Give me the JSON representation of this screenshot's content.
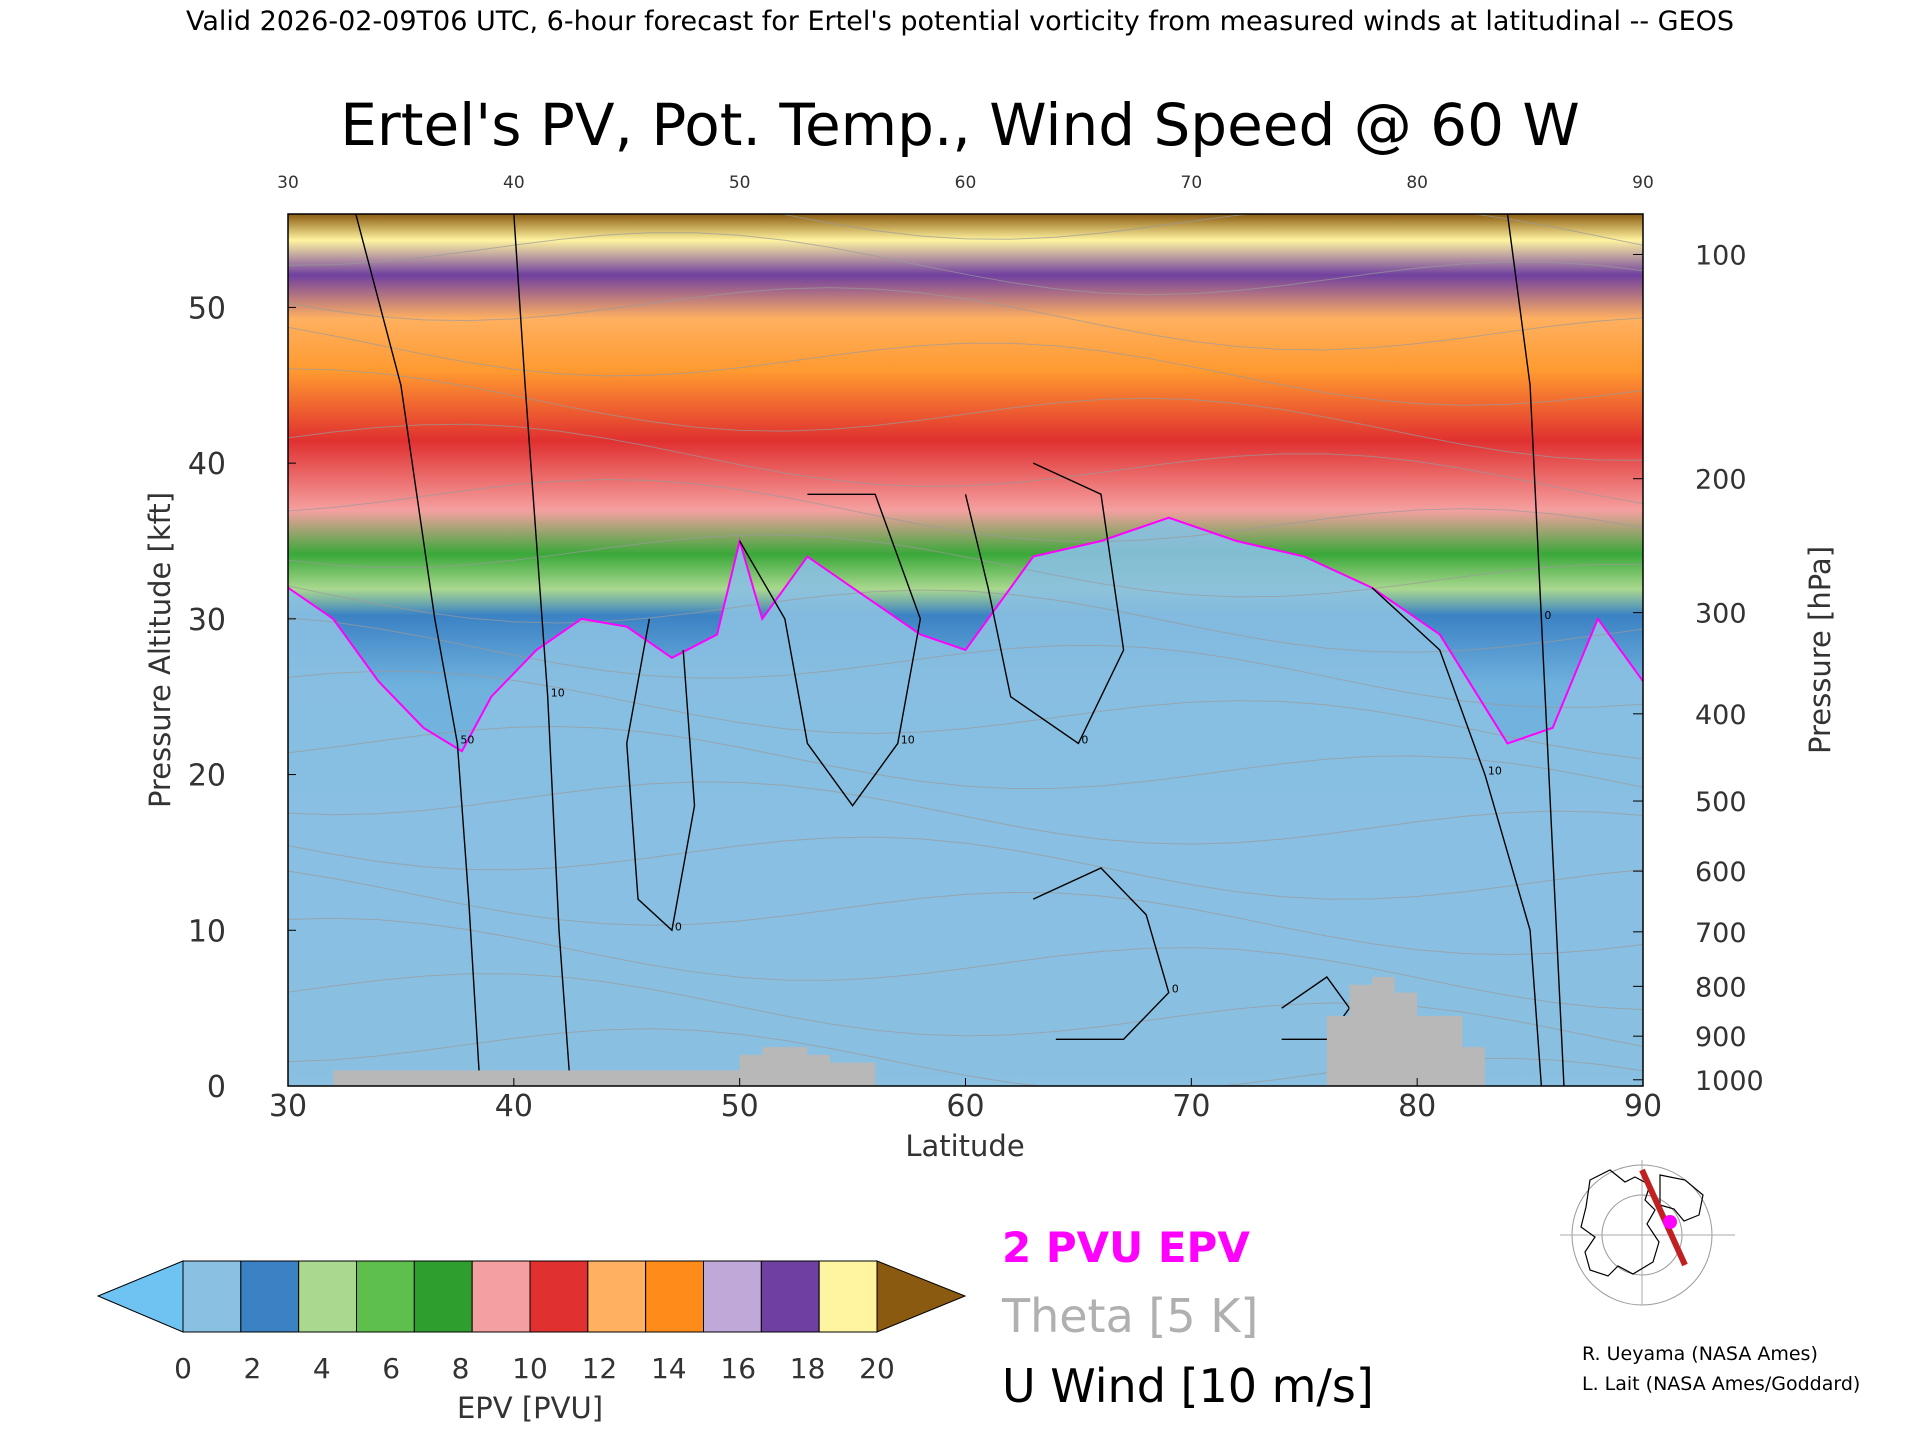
{
  "header": {
    "valid_line": "Valid 2026-02-09T06 UTC, 6-hour forecast for Ertel's potential vorticity from measured winds at latitudinal -- GEOS"
  },
  "chart_data": {
    "type": "heatmap",
    "title": "Ertel's PV, Pot. Temp., Wind Speed @ 60 W",
    "xlabel": "Latitude",
    "ylabel": "Pressure Altitude [kft]",
    "y2label": "Pressure [hPa]",
    "xlim": [
      30,
      90
    ],
    "ylim": [
      0,
      56
    ],
    "x_ticks": [
      30,
      40,
      50,
      60,
      70,
      80,
      90
    ],
    "y_ticks": [
      0,
      10,
      20,
      30,
      40,
      50
    ],
    "pressure_ticks": [
      {
        "value": 100,
        "kft": 53.4
      },
      {
        "value": 200,
        "kft": 39.0
      },
      {
        "value": 300,
        "kft": 30.4
      },
      {
        "value": 400,
        "kft": 23.9
      },
      {
        "value": 500,
        "kft": 18.3
      },
      {
        "value": 600,
        "kft": 13.8
      },
      {
        "value": 700,
        "kft": 9.9
      },
      {
        "value": 800,
        "kft": 6.4
      },
      {
        "value": 900,
        "kft": 3.2
      },
      {
        "value": 1000,
        "kft": 0.4
      }
    ],
    "colorbar": {
      "label": "EPV [PVU]",
      "ticks": [
        0,
        2,
        4,
        6,
        8,
        10,
        12,
        14,
        16,
        18,
        20
      ],
      "colors": [
        "#6fc3f2",
        "#8ac0e2",
        "#3b82c4",
        "#aad88f",
        "#5fbf4d",
        "#2e9e2e",
        "#f5a0a0",
        "#e03030",
        "#ffb060",
        "#ff8c1a",
        "#c0a8d8",
        "#7040a0",
        "#fff4a0",
        "#8a5a10"
      ]
    },
    "legend": [
      {
        "label": "2 PVU EPV",
        "color": "#ff00ff"
      },
      {
        "label": "Theta [5 K]",
        "color": "#b0b0b0"
      },
      {
        "label": "U Wind [10 m/s]",
        "color": "#000000"
      }
    ],
    "tropopause_2pvu": [
      {
        "lat": 30,
        "kft": 32.0
      },
      {
        "lat": 32,
        "kft": 30.0
      },
      {
        "lat": 34,
        "kft": 26.0
      },
      {
        "lat": 36,
        "kft": 23.0
      },
      {
        "lat": 37.7,
        "kft": 21.5
      },
      {
        "lat": 39,
        "kft": 25.0
      },
      {
        "lat": 41,
        "kft": 28.0
      },
      {
        "lat": 43,
        "kft": 30.0
      },
      {
        "lat": 45,
        "kft": 29.5
      },
      {
        "lat": 47,
        "kft": 27.5
      },
      {
        "lat": 49,
        "kft": 29.0
      },
      {
        "lat": 50,
        "kft": 35.0
      },
      {
        "lat": 51,
        "kft": 30.0
      },
      {
        "lat": 53,
        "kft": 34.0
      },
      {
        "lat": 56,
        "kft": 31.0
      },
      {
        "lat": 58,
        "kft": 29.0
      },
      {
        "lat": 60,
        "kft": 28.0
      },
      {
        "lat": 63,
        "kft": 34.0
      },
      {
        "lat": 66,
        "kft": 35.0
      },
      {
        "lat": 69,
        "kft": 36.5
      },
      {
        "lat": 72,
        "kft": 35.0
      },
      {
        "lat": 75,
        "kft": 34.0
      },
      {
        "lat": 78,
        "kft": 32.0
      },
      {
        "lat": 81,
        "kft": 29.0
      },
      {
        "lat": 84,
        "kft": 22.0
      },
      {
        "lat": 86,
        "kft": 23.0
      },
      {
        "lat": 88,
        "kft": 30.0
      },
      {
        "lat": 90,
        "kft": 26.0
      }
    ],
    "terrain": [
      {
        "lat_from": 32,
        "lat_to": 50,
        "kft": 1.0
      },
      {
        "lat_from": 50,
        "lat_to": 51,
        "kft": 2.0
      },
      {
        "lat_from": 51,
        "lat_to": 53,
        "kft": 2.5
      },
      {
        "lat_from": 53,
        "lat_to": 54,
        "kft": 2.0
      },
      {
        "lat_from": 54,
        "lat_to": 56,
        "kft": 1.5
      },
      {
        "lat_from": 76,
        "lat_to": 77,
        "kft": 4.5
      },
      {
        "lat_from": 77,
        "lat_to": 78,
        "kft": 6.5
      },
      {
        "lat_from": 78,
        "lat_to": 79,
        "kft": 7.0
      },
      {
        "lat_from": 79,
        "lat_to": 80,
        "kft": 6.0
      },
      {
        "lat_from": 80,
        "lat_to": 82,
        "kft": 4.5
      },
      {
        "lat_from": 82,
        "lat_to": 83,
        "kft": 2.5
      }
    ],
    "wind_contours": [
      {
        "label": "50",
        "points": [
          [
            33,
            56
          ],
          [
            35,
            45
          ],
          [
            36.5,
            30
          ],
          [
            37.5,
            22
          ],
          [
            38,
            12
          ],
          [
            38.5,
            0
          ]
        ]
      },
      {
        "label": "10",
        "points": [
          [
            40,
            56
          ],
          [
            40.5,
            45
          ],
          [
            41,
            35
          ],
          [
            41.5,
            25
          ],
          [
            42,
            10
          ],
          [
            42.5,
            0
          ]
        ]
      },
      {
        "label": "0",
        "points": [
          [
            46,
            30
          ],
          [
            45,
            22
          ],
          [
            45.5,
            12
          ],
          [
            47,
            10
          ],
          [
            48,
            18
          ],
          [
            47.5,
            28
          ]
        ]
      },
      {
        "label": "10",
        "points": [
          [
            50,
            35
          ],
          [
            52,
            30
          ],
          [
            53,
            22
          ],
          [
            55,
            18
          ],
          [
            57,
            22
          ],
          [
            58,
            30
          ],
          [
            56,
            38
          ],
          [
            53,
            38
          ]
        ]
      },
      {
        "label": "0",
        "points": [
          [
            60,
            38
          ],
          [
            61,
            32
          ],
          [
            62,
            25
          ],
          [
            65,
            22
          ],
          [
            67,
            28
          ],
          [
            66,
            38
          ],
          [
            63,
            40
          ]
        ]
      },
      {
        "label": "0",
        "points": [
          [
            63,
            12
          ],
          [
            66,
            14
          ],
          [
            68,
            11
          ],
          [
            69,
            6
          ],
          [
            67,
            3
          ],
          [
            64,
            3
          ]
        ]
      },
      {
        "label": "10",
        "points": [
          [
            78,
            32
          ],
          [
            81,
            28
          ],
          [
            83,
            20
          ],
          [
            85,
            10
          ],
          [
            85.5,
            0
          ]
        ]
      },
      {
        "label": "0",
        "points": [
          [
            74,
            5
          ],
          [
            76,
            7
          ],
          [
            77,
            5
          ],
          [
            76,
            3
          ],
          [
            74,
            3
          ]
        ]
      },
      {
        "label": "0",
        "points": [
          [
            84,
            56
          ],
          [
            85,
            45
          ],
          [
            85.5,
            30
          ],
          [
            86,
            15
          ],
          [
            86.5,
            0
          ]
        ]
      }
    ],
    "map_inset": {
      "credits": [
        "R. Ueyama (NASA Ames)",
        "L. Lait (NASA Ames/Goddard)"
      ]
    }
  }
}
